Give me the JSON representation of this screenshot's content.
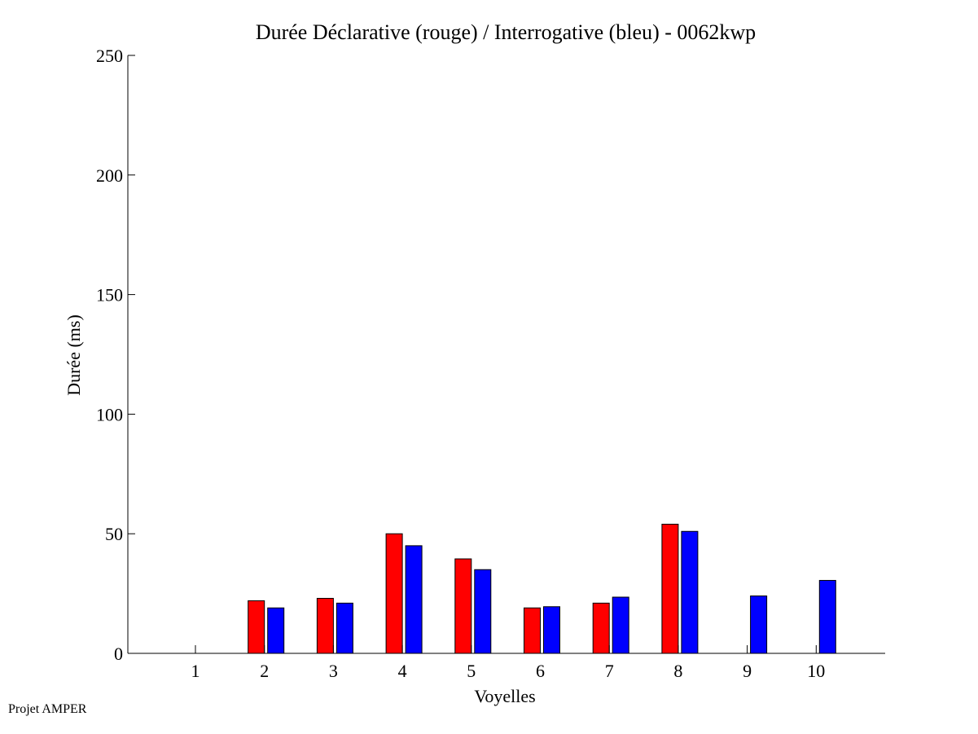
{
  "chart_data": {
    "type": "bar",
    "title": "Durée Déclarative (rouge) / Interrogative (bleu) - 0062kwp",
    "xlabel": "Voyelles",
    "ylabel": "Durée (ms)",
    "ylim": [
      0,
      250
    ],
    "yticks": [
      "0",
      "50",
      "100",
      "150",
      "200",
      "250"
    ],
    "categories": [
      "1",
      "2",
      "3",
      "4",
      "5",
      "6",
      "7",
      "8",
      "9",
      "10"
    ],
    "series": [
      {
        "color": "#ff0000",
        "values": [
          0,
          22,
          23,
          50,
          39.5,
          19,
          21,
          54,
          0,
          0
        ]
      },
      {
        "color": "#0000ff",
        "values": [
          0,
          19,
          21,
          45,
          35,
          19.5,
          23.5,
          51,
          24,
          30.5
        ]
      }
    ],
    "grid": false
  },
  "footer": "Projet AMPER"
}
